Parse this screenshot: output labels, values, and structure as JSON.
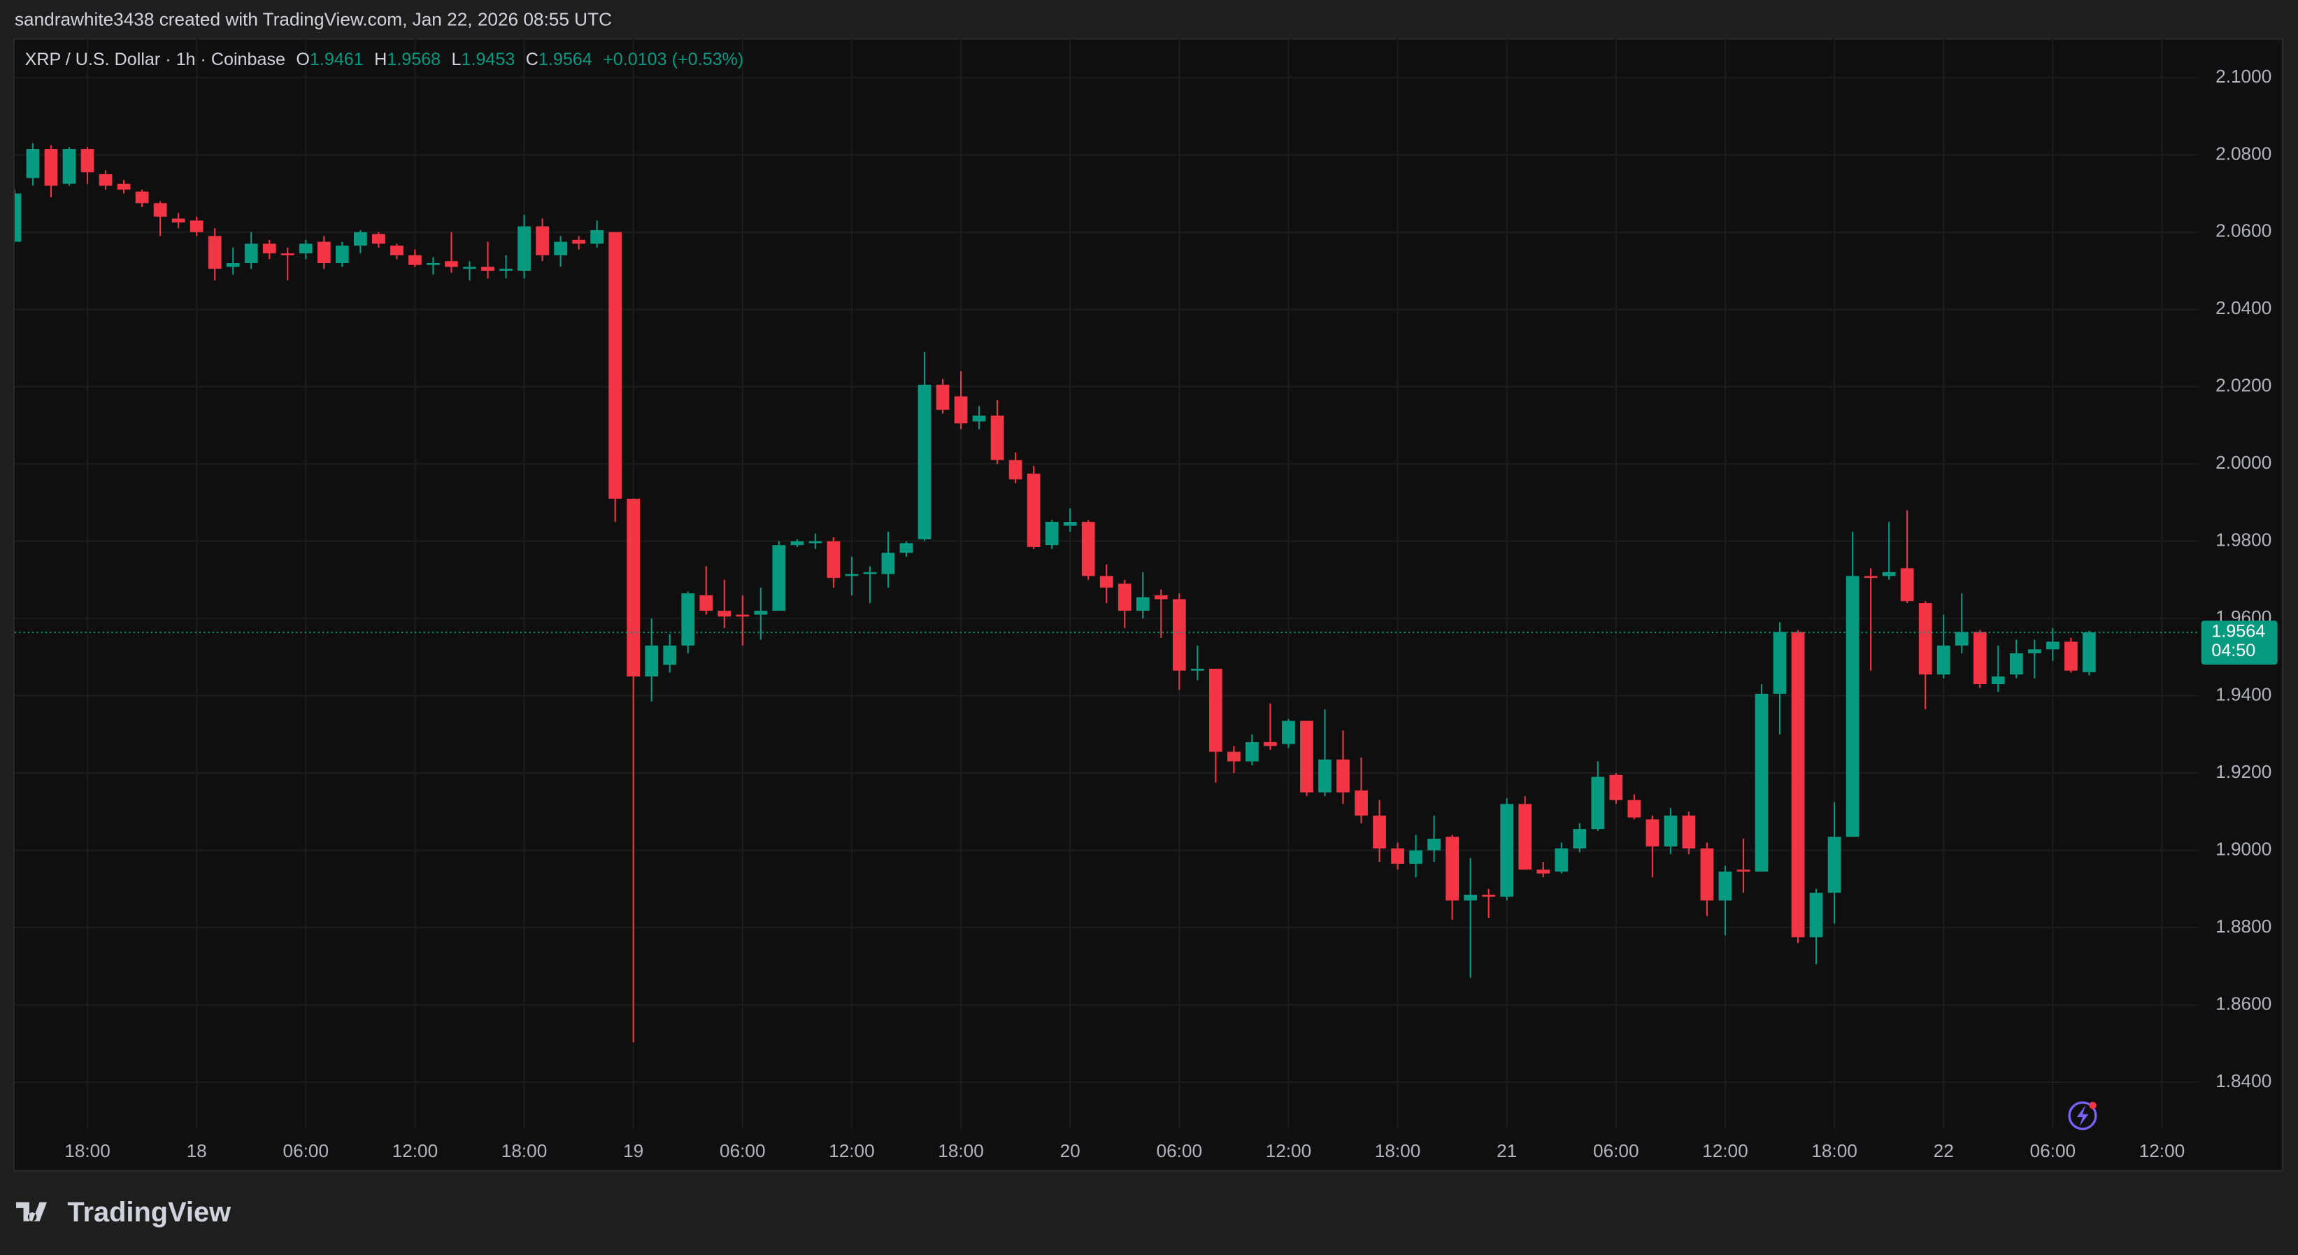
{
  "chart_data": {
    "type": "candlestick",
    "header": "sandrawhite3438 created with TradingView.com, Jan 22, 2026 08:55 UTC",
    "symbol": "XRP / U.S. Dollar · 1h · Coinbase",
    "ohlc_letters": [
      "O",
      "H",
      "L",
      "C"
    ],
    "change": "+0.0103 (+0.53%)",
    "countdown": "04:50",
    "brand": "TradingView",
    "up_color": "#089981",
    "down_color": "#f23645",
    "grid": true,
    "open": [
      2.0575,
      2.074,
      2.0815,
      2.0725,
      2.0815,
      2.075,
      2.0725,
      2.0705,
      2.0675,
      2.0635,
      2.063,
      2.059,
      2.051,
      2.052,
      2.057,
      2.0545,
      2.0545,
      2.0575,
      2.052,
      2.0565,
      2.0595,
      2.0565,
      2.054,
      2.0515,
      2.0525,
      2.0505,
      2.051,
      2.05,
      2.05,
      2.0615,
      2.054,
      2.058,
      2.057,
      2.06,
      1.991,
      1.945,
      1.948,
      1.953,
      1.966,
      1.962,
      1.961,
      1.961,
      1.962,
      1.979,
      1.9795,
      1.98,
      1.971,
      1.9715,
      1.9715,
      1.977,
      1.9805,
      2.0205,
      2.0175,
      2.011,
      2.0125,
      2.001,
      1.9975,
      1.979,
      1.984,
      1.985,
      1.971,
      1.969,
      1.962,
      1.966,
      1.965,
      1.9465,
      1.947,
      1.9255,
      1.923,
      1.928,
      1.9275,
      1.9335,
      1.915,
      1.9235,
      1.9155,
      1.909,
      1.9005,
      1.8965,
      1.9,
      1.9035,
      1.887,
      1.8885,
      1.888,
      1.912,
      1.895,
      1.8945,
      1.9005,
      1.9055,
      1.9195,
      1.913,
      1.908,
      1.901,
      1.909,
      1.9005,
      1.887,
      1.895,
      1.8945,
      1.9405,
      1.9565,
      1.8775,
      1.889,
      1.9035,
      1.971,
      1.971,
      1.973,
      1.964,
      1.9455,
      1.953,
      1.9565,
      1.943,
      1.9455,
      1.951,
      1.952,
      1.954,
      1.9461
    ],
    "high": [
      2.071,
      2.083,
      2.0825,
      2.082,
      2.082,
      2.076,
      2.0735,
      2.071,
      2.068,
      2.065,
      2.064,
      2.061,
      2.056,
      2.06,
      2.058,
      2.056,
      2.058,
      2.059,
      2.0575,
      2.0605,
      2.06,
      2.057,
      2.0555,
      2.0535,
      2.06,
      2.0525,
      2.0575,
      2.054,
      2.0645,
      2.0635,
      2.059,
      2.059,
      2.063,
      2.06,
      1.991,
      1.96,
      1.956,
      1.967,
      1.9735,
      1.97,
      1.966,
      1.968,
      1.98,
      1.9805,
      1.982,
      1.981,
      1.976,
      1.9735,
      1.9825,
      1.98,
      2.029,
      2.022,
      2.024,
      2.015,
      2.0165,
      2.003,
      1.9995,
      1.9855,
      1.9885,
      1.9855,
      1.974,
      1.97,
      1.972,
      1.9675,
      1.9665,
      1.953,
      1.947,
      1.927,
      1.93,
      1.938,
      1.934,
      1.9335,
      1.9365,
      1.931,
      1.924,
      1.913,
      1.902,
      1.904,
      1.909,
      1.904,
      1.898,
      1.89,
      1.9135,
      1.914,
      1.897,
      1.902,
      1.907,
      1.923,
      1.92,
      1.9145,
      1.909,
      1.911,
      1.91,
      1.902,
      1.896,
      1.903,
      1.943,
      1.959,
      1.957,
      1.89,
      1.9125,
      1.9825,
      1.973,
      1.985,
      1.988,
      1.9645,
      1.961,
      1.9665,
      1.957,
      1.953,
      1.9545,
      1.9545,
      1.9575,
      1.955,
      1.9568
    ],
    "low": [
      2.0575,
      2.072,
      2.069,
      2.072,
      2.0725,
      2.071,
      2.07,
      2.0665,
      2.059,
      2.061,
      2.059,
      2.0475,
      2.049,
      2.0505,
      2.053,
      2.0475,
      2.053,
      2.0505,
      2.051,
      2.0545,
      2.056,
      2.053,
      2.051,
      2.049,
      2.0495,
      2.0475,
      2.048,
      2.048,
      2.048,
      2.0525,
      2.051,
      2.0555,
      2.056,
      1.985,
      1.8503,
      1.9385,
      1.946,
      1.951,
      1.961,
      1.9575,
      1.953,
      1.9545,
      1.962,
      1.9785,
      1.978,
      1.968,
      1.966,
      1.964,
      1.968,
      1.976,
      1.98,
      2.013,
      2.009,
      2.009,
      2.0,
      1.995,
      1.978,
      1.978,
      1.9825,
      1.97,
      1.964,
      1.9575,
      1.96,
      1.955,
      1.9415,
      1.944,
      1.9175,
      1.92,
      1.922,
      1.926,
      1.9265,
      1.914,
      1.914,
      1.912,
      1.907,
      1.897,
      1.895,
      1.893,
      1.897,
      1.882,
      1.867,
      1.8825,
      1.887,
      1.895,
      1.893,
      1.894,
      1.8995,
      1.905,
      1.912,
      1.908,
      1.893,
      1.899,
      1.899,
      1.883,
      1.878,
      1.889,
      1.8945,
      1.93,
      1.876,
      1.8705,
      1.881,
      1.9035,
      1.9465,
      1.97,
      1.964,
      1.9365,
      1.9445,
      1.951,
      1.942,
      1.941,
      1.9445,
      1.9445,
      1.949,
      1.946,
      1.9453
    ],
    "close": [
      2.07,
      2.0815,
      2.072,
      2.0815,
      2.0755,
      2.072,
      2.071,
      2.0675,
      2.064,
      2.0625,
      2.06,
      2.0505,
      2.052,
      2.057,
      2.0545,
      2.054,
      2.057,
      2.052,
      2.0565,
      2.06,
      2.057,
      2.054,
      2.0515,
      2.052,
      2.051,
      2.051,
      2.05,
      2.0505,
      2.0615,
      2.054,
      2.0575,
      2.057,
      2.0605,
      1.991,
      1.945,
      1.953,
      1.953,
      1.9665,
      1.962,
      1.9605,
      1.9605,
      1.962,
      1.979,
      1.98,
      1.98,
      1.9705,
      1.9715,
      1.972,
      1.977,
      1.9795,
      2.0205,
      2.014,
      2.0105,
      2.0125,
      2.001,
      1.996,
      1.9785,
      1.985,
      1.985,
      1.971,
      1.968,
      1.962,
      1.9655,
      1.965,
      1.9465,
      1.947,
      1.9255,
      1.923,
      1.928,
      1.927,
      1.9335,
      1.915,
      1.9235,
      1.915,
      1.909,
      1.9005,
      1.8965,
      1.9,
      1.903,
      1.887,
      1.8885,
      1.888,
      1.912,
      1.895,
      1.894,
      1.9005,
      1.9055,
      1.919,
      1.913,
      1.9085,
      1.901,
      1.909,
      1.9005,
      1.887,
      1.8945,
      1.8945,
      1.9405,
      1.9565,
      1.8775,
      1.889,
      1.9035,
      1.971,
      1.9705,
      1.972,
      1.9645,
      1.9455,
      1.953,
      1.9565,
      1.943,
      1.945,
      1.951,
      1.952,
      1.954,
      1.9465,
      1.9564
    ],
    "xlim": [
      0,
      120
    ],
    "xticks": [
      {
        "value": 4,
        "label": "18:00"
      },
      {
        "value": 10,
        "label": "18"
      },
      {
        "value": 16,
        "label": "06:00"
      },
      {
        "value": 22,
        "label": "12:00"
      },
      {
        "value": 28,
        "label": "18:00"
      },
      {
        "value": 34,
        "label": "19"
      },
      {
        "value": 40,
        "label": "06:00"
      },
      {
        "value": 46,
        "label": "12:00"
      },
      {
        "value": 52,
        "label": "18:00"
      },
      {
        "value": 58,
        "label": "20"
      },
      {
        "value": 64,
        "label": "06:00"
      },
      {
        "value": 70,
        "label": "12:00"
      },
      {
        "value": 76,
        "label": "18:00"
      },
      {
        "value": 82,
        "label": "21"
      },
      {
        "value": 88,
        "label": "06:00"
      },
      {
        "value": 94,
        "label": "12:00"
      },
      {
        "value": 100,
        "label": "18:00"
      },
      {
        "value": 106,
        "label": "22"
      },
      {
        "value": 112,
        "label": "06:00"
      },
      {
        "value": 118,
        "label": "12:00"
      }
    ],
    "ylim": [
      1.8279,
      2.1102
    ],
    "yticks": [
      {
        "value": 1.84,
        "label": "1.8400"
      },
      {
        "value": 1.86,
        "label": "1.8600"
      },
      {
        "value": 1.88,
        "label": "1.8800"
      },
      {
        "value": 1.9,
        "label": "1.9000"
      },
      {
        "value": 1.92,
        "label": "1.9200"
      },
      {
        "value": 1.94,
        "label": "1.9400"
      },
      {
        "value": 1.96,
        "label": "1.9600"
      },
      {
        "value": 1.98,
        "label": "1.9800"
      },
      {
        "value": 2.0,
        "label": "2.0000"
      },
      {
        "value": 2.02,
        "label": "2.0200"
      },
      {
        "value": 2.04,
        "label": "2.0400"
      },
      {
        "value": 2.06,
        "label": "2.0600"
      },
      {
        "value": 2.08,
        "label": "2.0800"
      },
      {
        "value": 2.1,
        "label": "2.1000"
      }
    ]
  }
}
